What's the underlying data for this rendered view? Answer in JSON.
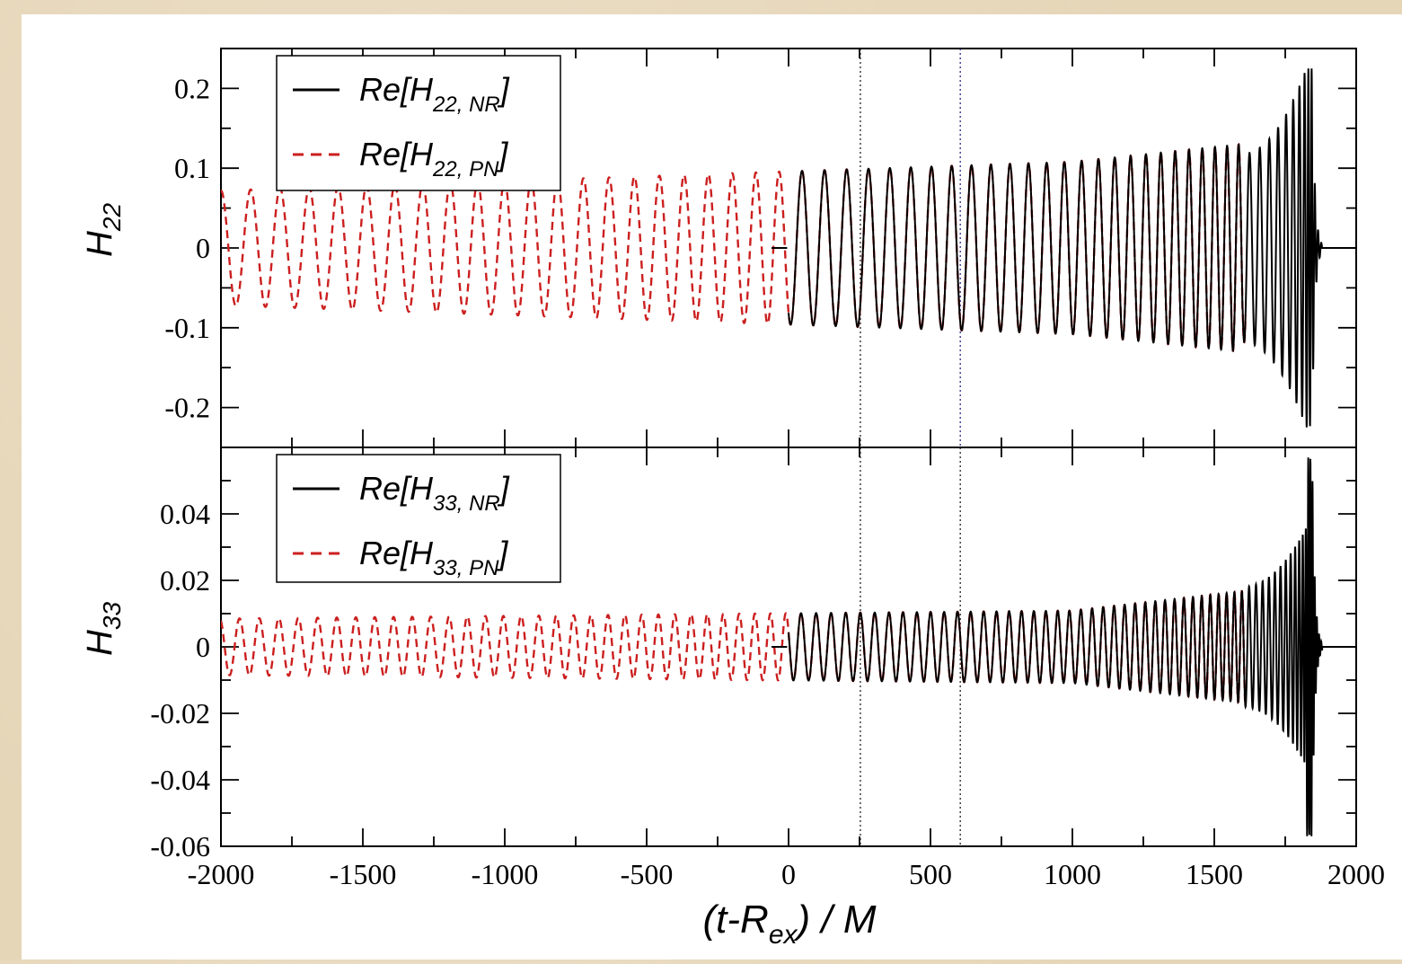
{
  "chart_data": [
    {
      "type": "line",
      "ylabel": "H",
      "ylabel_sub": "22",
      "xlim": [
        -2000,
        2000
      ],
      "ylim": [
        -0.25,
        0.25
      ],
      "xticks": [
        "-2000",
        "-1500",
        "-1000",
        "-500",
        "0",
        "500",
        "1000",
        "1500",
        "2000"
      ],
      "yticks": [
        {
          "v": 0.2,
          "t": "0.2"
        },
        {
          "v": 0.1,
          "t": "0.1"
        },
        {
          "v": 0,
          "t": "0"
        },
        {
          "v": -0.1,
          "t": "-0.1"
        },
        {
          "v": -0.2,
          "t": "-0.2"
        }
      ],
      "legend": [
        {
          "pre": "Re[H",
          "sub": "22, NR",
          "post": "]",
          "color": "#000000",
          "dash": false
        },
        {
          "pre": "Re[H",
          "sub": "22, PN",
          "post": "]",
          "color": "#cc1f1f",
          "dash": true
        }
      ],
      "vlines": [
        {
          "x": 253,
          "color": "#222222"
        },
        {
          "x": 605,
          "color": "#2a2a8a"
        }
      ],
      "series": [
        {
          "color": "#000000",
          "dash": false,
          "description_points": [
            [
              -70,
              0.0
            ],
            [
              -5,
              0.0
            ],
            [
              0,
              -0.02
            ],
            [
              8,
              -0.088
            ],
            [
              20,
              0.088
            ],
            [
              500,
              0.09
            ],
            [
              1000,
              0.1
            ],
            [
              1500,
              0.125
            ],
            [
              1700,
              0.15
            ],
            [
              1780,
              0.2
            ],
            [
              1820,
              0.235
            ],
            [
              1845,
              0.05
            ],
            [
              1870,
              0.002
            ],
            [
              2000,
              0.0
            ]
          ],
          "x_start": 0,
          "x_end": 2000
        },
        {
          "color": "#cc1f1f",
          "dash": true,
          "x_start": -2000,
          "x_end": 1610
        }
      ]
    },
    {
      "type": "line",
      "ylabel": "H",
      "ylabel_sub": "33",
      "xlabel": "(t-R",
      "xlabel_sub": "ex",
      "xlabel_post": ") / M",
      "xlim": [
        -2000,
        2000
      ],
      "ylim": [
        -0.06,
        0.06
      ],
      "xticks": [
        "-2000",
        "-1500",
        "-1000",
        "-500",
        "0",
        "500",
        "1000",
        "1500",
        "2000"
      ],
      "yticks": [
        {
          "v": 0.04,
          "t": "0.04"
        },
        {
          "v": 0.02,
          "t": "0.02"
        },
        {
          "v": 0,
          "t": "0"
        },
        {
          "v": -0.02,
          "t": "-0.02"
        },
        {
          "v": -0.04,
          "t": "-0.04"
        },
        {
          "v": -0.06,
          "t": "-0.06"
        }
      ],
      "legend": [
        {
          "pre": "Re[H",
          "sub": "33, NR",
          "post": "]",
          "color": "#000000",
          "dash": false
        },
        {
          "pre": "Re[H",
          "sub": "33, PN",
          "post": "]",
          "color": "#cc1f1f",
          "dash": true
        }
      ],
      "vlines": [
        {
          "x": 253,
          "color": "#222222"
        },
        {
          "x": 605,
          "color": "#222222"
        }
      ],
      "series": [
        {
          "color": "#000000",
          "dash": false,
          "x_start": 0,
          "x_end": 2000
        },
        {
          "color": "#cc1f1f",
          "dash": true,
          "x_start": -2000,
          "x_end": 1610
        }
      ]
    }
  ]
}
